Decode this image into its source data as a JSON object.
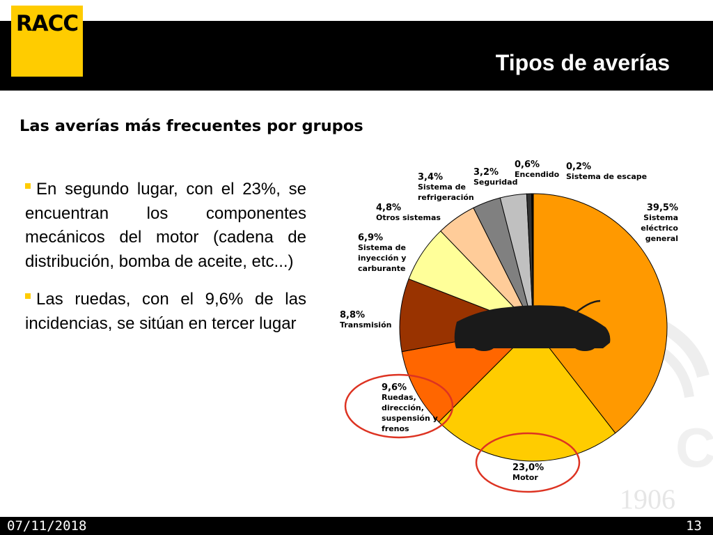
{
  "header": {
    "logo_text": "RACC",
    "title": "Tipos de averías"
  },
  "subtitle": "Las averías más frecuentes por grupos",
  "bullets": [
    "En segundo lugar, con el 23%, se encuentran los componentes mecánicos del motor (cadena de distribución, bomba de aceite, etc...)",
    "Las ruedas, con el 9,6% de las incidencias, se sitúan en tercer lugar"
  ],
  "footer": {
    "date": "07/11/2018",
    "page": "13"
  },
  "watermark": {
    "year": "1906"
  },
  "chart_data": {
    "type": "pie",
    "title": "",
    "start": "12 o'clock, clockwise",
    "slices": [
      {
        "label": "Sistema eléctrico general",
        "display": "39,5%",
        "value": 39.5,
        "color": "#ff9900"
      },
      {
        "label": "Motor",
        "display": "23,0%",
        "value": 23.0,
        "color": "#ffcc00"
      },
      {
        "label": "Ruedas, dirección, suspensión y frenos",
        "display": "9,6%",
        "value": 9.6,
        "color": "#ff6600"
      },
      {
        "label": "Transmisión",
        "display": "8,8%",
        "value": 8.8,
        "color": "#993300"
      },
      {
        "label": "Sistema de inyección y carburante",
        "display": "6,9%",
        "value": 6.9,
        "color": "#ffff99"
      },
      {
        "label": "Otros sistemas",
        "display": "4,8%",
        "value": 4.8,
        "color": "#ffcc99"
      },
      {
        "label": "Sistema de refrigeración",
        "display": "3,4%",
        "value": 3.4,
        "color": "#808080"
      },
      {
        "label": "Seguridad",
        "display": "3,2%",
        "value": 3.2,
        "color": "#c0c0c0"
      },
      {
        "label": "Encendido",
        "display": "0,6%",
        "value": 0.6,
        "color": "#333333"
      },
      {
        "label": "Sistema de escape",
        "display": "0,2%",
        "value": 0.2,
        "color": "#000000"
      }
    ],
    "highlighted": [
      "Motor",
      "Ruedas, dirección, suspensión y frenos"
    ],
    "highlight_color": "#dd3322"
  }
}
